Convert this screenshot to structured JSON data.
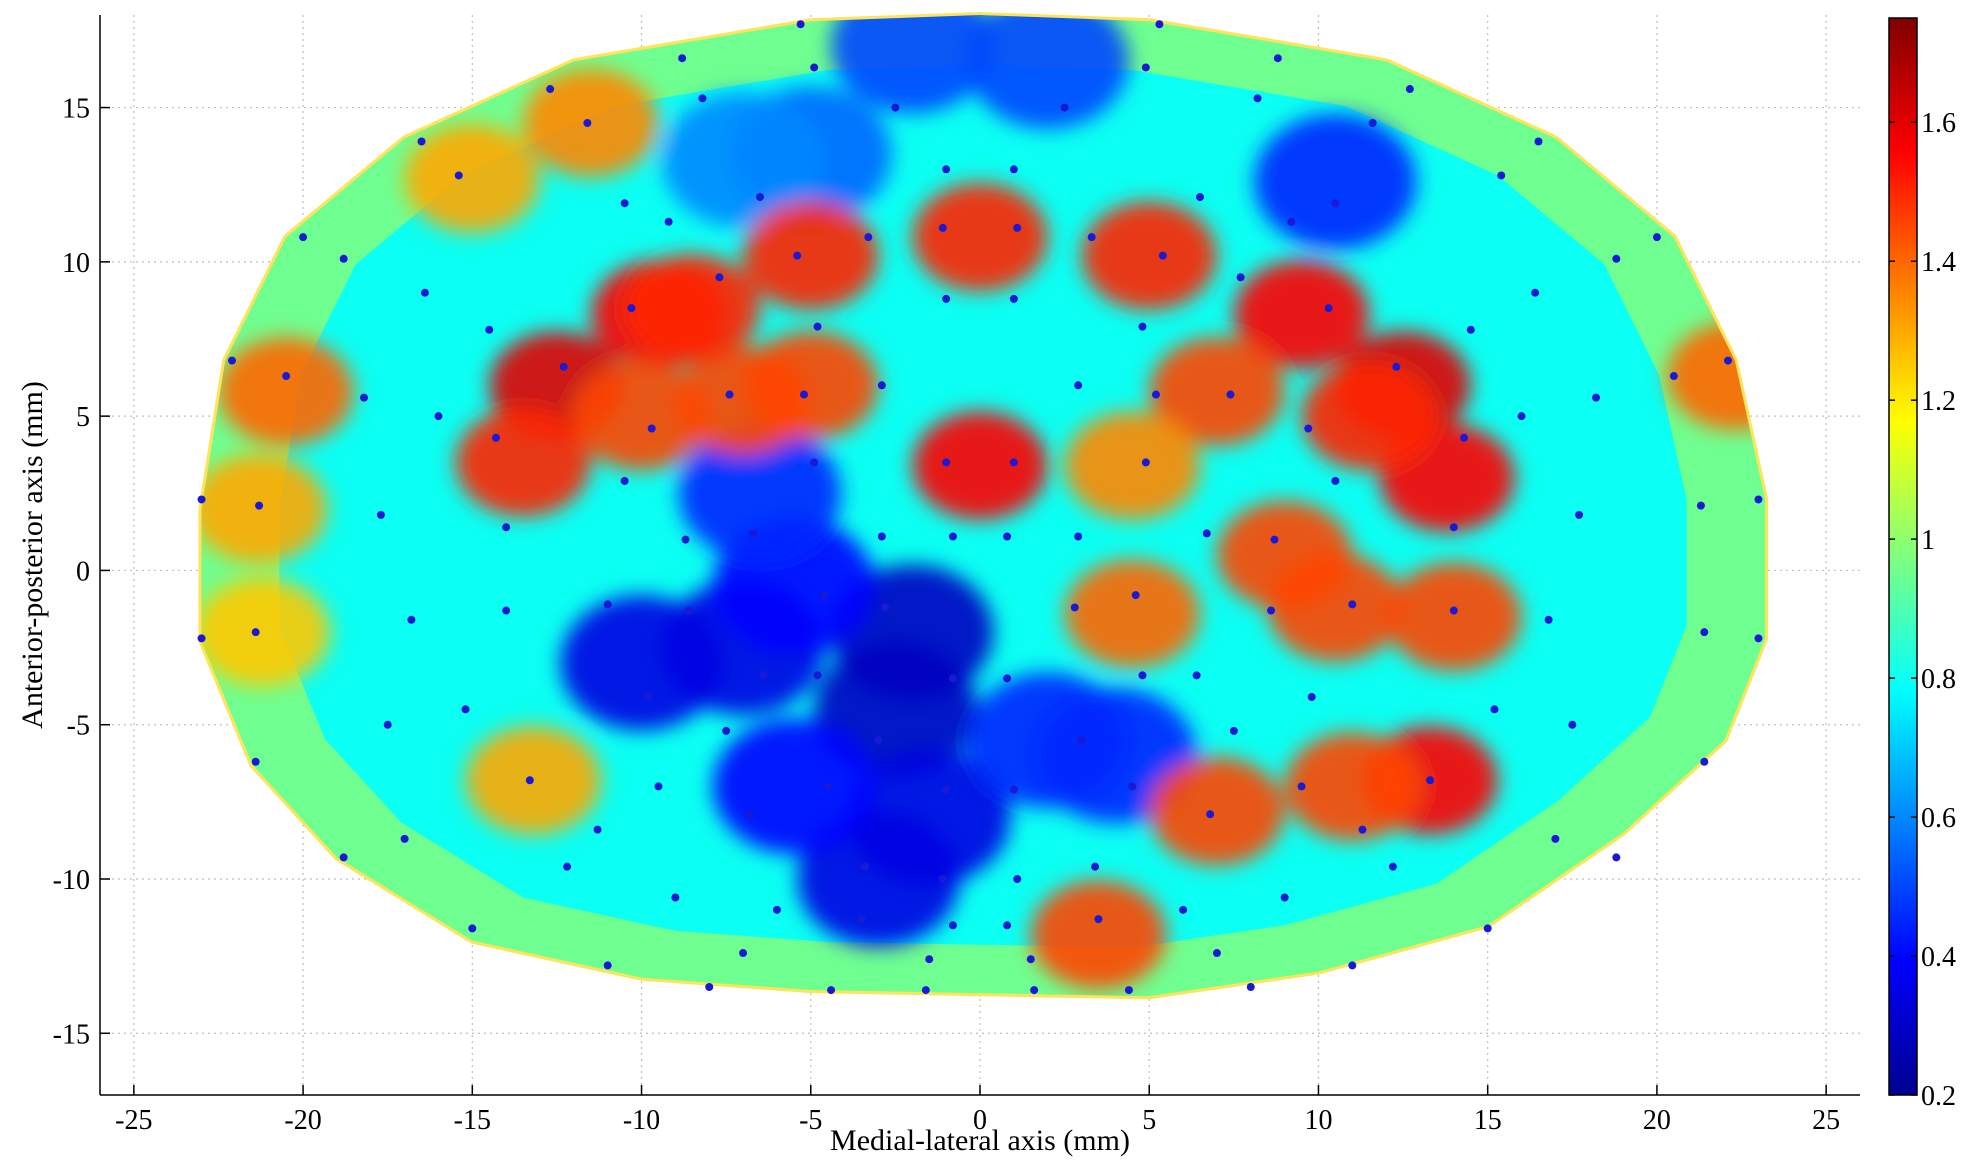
{
  "chart_data": {
    "type": "heatmap",
    "title": "",
    "xlabel": "Medial-lateral axis (mm)",
    "ylabel": "Anterior-posterior axis (mm)",
    "xlim": [
      -26,
      26
    ],
    "ylim": [
      -17,
      18
    ],
    "xticks": [
      -25,
      -20,
      -15,
      -10,
      -5,
      0,
      5,
      10,
      15,
      20,
      25
    ],
    "yticks": [
      -15,
      -10,
      -5,
      0,
      5,
      10,
      15
    ],
    "grid": true,
    "colorbar": {
      "min": 0.2,
      "max": 1.75,
      "ticks": [
        0.2,
        0.4,
        0.6,
        0.8,
        1,
        1.2,
        1.4,
        1.6
      ],
      "colormap": "jet"
    },
    "outline": [
      [
        -23,
        2
      ],
      [
        -22.3,
        6.8
      ],
      [
        -20.5,
        10.8
      ],
      [
        -17,
        14
      ],
      [
        -12,
        16.5
      ],
      [
        -5,
        17.8
      ],
      [
        0,
        18
      ],
      [
        5,
        17.8
      ],
      [
        12,
        16.5
      ],
      [
        17,
        14
      ],
      [
        20.5,
        10.8
      ],
      [
        22.3,
        6.8
      ],
      [
        23.2,
        2.3
      ],
      [
        23.2,
        -2.2
      ],
      [
        22,
        -5.5
      ],
      [
        19,
        -8.5
      ],
      [
        15,
        -11.5
      ],
      [
        10,
        -13
      ],
      [
        5,
        -13.8
      ],
      [
        0,
        -13.7
      ],
      [
        -5,
        -13.6
      ],
      [
        -10,
        -13.2
      ],
      [
        -15,
        -12
      ],
      [
        -19,
        -9.3
      ],
      [
        -21.5,
        -6.3
      ],
      [
        -23,
        -2.3
      ]
    ],
    "hotspots": [
      {
        "x": 0,
        "y": 10.8,
        "value": 1.5
      },
      {
        "x": -5,
        "y": 10.2,
        "value": 1.5
      },
      {
        "x": 5,
        "y": 10.2,
        "value": 1.5
      },
      {
        "x": -9.5,
        "y": 8.3,
        "value": 1.55
      },
      {
        "x": 9.5,
        "y": 8.3,
        "value": 1.55
      },
      {
        "x": -12.5,
        "y": 6,
        "value": 1.6
      },
      {
        "x": 12.5,
        "y": 6,
        "value": 1.6
      },
      {
        "x": -13.5,
        "y": 3.5,
        "value": 1.5
      },
      {
        "x": 13.8,
        "y": 3,
        "value": 1.55
      },
      {
        "x": -7,
        "y": 5.5,
        "value": 1.45
      },
      {
        "x": -5,
        "y": 6,
        "value": 1.45
      },
      {
        "x": 0,
        "y": 3.4,
        "value": 1.55
      },
      {
        "x": 7,
        "y": 5.8,
        "value": 1.45
      },
      {
        "x": -20.5,
        "y": 5.8,
        "value": 1.4
      },
      {
        "x": -21.3,
        "y": 2,
        "value": 1.3
      },
      {
        "x": -21.2,
        "y": -2,
        "value": 1.25
      },
      {
        "x": 9,
        "y": 0.5,
        "value": 1.45
      },
      {
        "x": 10.5,
        "y": -1.2,
        "value": 1.45
      },
      {
        "x": 14,
        "y": -1.5,
        "value": 1.45
      },
      {
        "x": 13.3,
        "y": -6.8,
        "value": 1.55
      },
      {
        "x": 11,
        "y": -7,
        "value": 1.45
      },
      {
        "x": 7,
        "y": -7.8,
        "value": 1.45
      },
      {
        "x": 4.5,
        "y": -1.4,
        "value": 1.4
      },
      {
        "x": 3.5,
        "y": -11.8,
        "value": 1.45
      },
      {
        "x": -13.2,
        "y": -6.8,
        "value": 1.3
      },
      {
        "x": -11.5,
        "y": 14.5,
        "value": 1.35
      },
      {
        "x": -15,
        "y": 12.7,
        "value": 1.3
      },
      {
        "x": 22.3,
        "y": 6.3,
        "value": 1.4
      },
      {
        "x": -8.5,
        "y": 8.5,
        "value": 1.5
      },
      {
        "x": 4.5,
        "y": 3.4,
        "value": 1.35
      },
      {
        "x": -10,
        "y": 5,
        "value": 1.45
      },
      {
        "x": 11.5,
        "y": 5,
        "value": 1.5
      }
    ],
    "coldspots": [
      {
        "x": -2,
        "y": -2,
        "value": 0.3
      },
      {
        "x": -2.5,
        "y": -4.5,
        "value": 0.3
      },
      {
        "x": -10,
        "y": -3,
        "value": 0.35
      },
      {
        "x": -7,
        "y": -2.5,
        "value": 0.35
      },
      {
        "x": -5.5,
        "y": -0.5,
        "value": 0.4
      },
      {
        "x": -1.5,
        "y": -8,
        "value": 0.35
      },
      {
        "x": -3,
        "y": -10,
        "value": 0.35
      },
      {
        "x": -6.5,
        "y": 2.5,
        "value": 0.45
      },
      {
        "x": 2,
        "y": -5.5,
        "value": 0.45
      },
      {
        "x": 4,
        "y": -6,
        "value": 0.45
      },
      {
        "x": -2,
        "y": 17,
        "value": 0.5
      },
      {
        "x": 2,
        "y": 16.5,
        "value": 0.5
      },
      {
        "x": -5,
        "y": 13.5,
        "value": 0.55
      },
      {
        "x": 10.5,
        "y": 12.6,
        "value": 0.45
      },
      {
        "x": -7,
        "y": 13.3,
        "value": 0.6
      },
      {
        "x": -5.5,
        "y": -7,
        "value": 0.4
      }
    ],
    "sample_points": [
      [
        -5.3,
        17.7
      ],
      [
        5.3,
        17.7
      ],
      [
        -8.8,
        16.6
      ],
      [
        8.8,
        16.6
      ],
      [
        -4.9,
        16.3
      ],
      [
        4.9,
        16.3
      ],
      [
        -12.7,
        15.6
      ],
      [
        12.7,
        15.6
      ],
      [
        -8.2,
        15.3
      ],
      [
        8.2,
        15.3
      ],
      [
        -2.5,
        15
      ],
      [
        2.5,
        15
      ],
      [
        -11.6,
        14.5
      ],
      [
        11.6,
        14.5
      ],
      [
        -16.5,
        13.9
      ],
      [
        16.5,
        13.9
      ],
      [
        -15.4,
        12.8
      ],
      [
        15.4,
        12.8
      ],
      [
        -1,
        13
      ],
      [
        1,
        13
      ],
      [
        -6.5,
        12.1
      ],
      [
        6.5,
        12.1
      ],
      [
        -10.5,
        11.9
      ],
      [
        10.5,
        11.9
      ],
      [
        -9.2,
        11.3
      ],
      [
        9.2,
        11.3
      ],
      [
        -1.1,
        11.1
      ],
      [
        1.1,
        11.1
      ],
      [
        -3.3,
        10.8
      ],
      [
        3.3,
        10.8
      ],
      [
        -20,
        10.8
      ],
      [
        20,
        10.8
      ],
      [
        -18.8,
        10.1
      ],
      [
        18.8,
        10.1
      ],
      [
        -5.4,
        10.2
      ],
      [
        5.4,
        10.2
      ],
      [
        -7.7,
        9.5
      ],
      [
        7.7,
        9.5
      ],
      [
        -16.4,
        9
      ],
      [
        16.4,
        9
      ],
      [
        -1,
        8.8
      ],
      [
        1,
        8.8
      ],
      [
        -10.3,
        8.5
      ],
      [
        10.3,
        8.5
      ],
      [
        -14.5,
        7.8
      ],
      [
        14.5,
        7.8
      ],
      [
        -4.8,
        7.9
      ],
      [
        4.8,
        7.9
      ],
      [
        -22.1,
        6.8
      ],
      [
        22.1,
        6.8
      ],
      [
        -12.3,
        6.6
      ],
      [
        12.3,
        6.6
      ],
      [
        -20.5,
        6.3
      ],
      [
        20.5,
        6.3
      ],
      [
        -2.9,
        6
      ],
      [
        2.9,
        6
      ],
      [
        -18.2,
        5.6
      ],
      [
        18.2,
        5.6
      ],
      [
        -7.4,
        5.7
      ],
      [
        7.4,
        5.7
      ],
      [
        -5.2,
        5.7
      ],
      [
        5.2,
        5.7
      ],
      [
        -16,
        5
      ],
      [
        16,
        5
      ],
      [
        -14.3,
        4.3
      ],
      [
        14.3,
        4.3
      ],
      [
        -9.7,
        4.6
      ],
      [
        9.7,
        4.6
      ],
      [
        -1,
        3.5
      ],
      [
        1,
        3.5
      ],
      [
        -4.9,
        3.5
      ],
      [
        4.9,
        3.5
      ],
      [
        -10.5,
        2.9
      ],
      [
        10.5,
        2.9
      ],
      [
        -23,
        2.3
      ],
      [
        23,
        2.3
      ],
      [
        -21.3,
        2.1
      ],
      [
        21.3,
        2.1
      ],
      [
        -17.7,
        1.8
      ],
      [
        17.7,
        1.8
      ],
      [
        -14,
        1.4
      ],
      [
        14,
        1.4
      ],
      [
        -8.7,
        1
      ],
      [
        8.7,
        1
      ],
      [
        -6.7,
        1.2
      ],
      [
        6.7,
        1.2
      ],
      [
        -2.9,
        1.1
      ],
      [
        2.9,
        1.1
      ],
      [
        -0.8,
        1.1
      ],
      [
        0.8,
        1.1
      ],
      [
        -4.6,
        -0.8
      ],
      [
        4.6,
        -0.8
      ],
      [
        -11,
        -1.1
      ],
      [
        11,
        -1.1
      ],
      [
        -8.6,
        -1.3
      ],
      [
        8.6,
        -1.3
      ],
      [
        -2.8,
        -1.2
      ],
      [
        2.8,
        -1.2
      ],
      [
        -21.4,
        -2
      ],
      [
        21.4,
        -2
      ],
      [
        -23,
        -2.2
      ],
      [
        23,
        -2.2
      ],
      [
        -16.8,
        -1.6
      ],
      [
        16.8,
        -1.6
      ],
      [
        -14,
        -1.3
      ],
      [
        14,
        -1.3
      ],
      [
        -6.4,
        -3.4
      ],
      [
        6.4,
        -3.4
      ],
      [
        -0.8,
        -3.5
      ],
      [
        0.8,
        -3.5
      ],
      [
        -4.8,
        -3.4
      ],
      [
        4.8,
        -3.4
      ],
      [
        -9.8,
        -4.1
      ],
      [
        9.8,
        -4.1
      ],
      [
        -15.2,
        -4.5
      ],
      [
        15.2,
        -4.5
      ],
      [
        -17.5,
        -5
      ],
      [
        17.5,
        -5
      ],
      [
        -7.5,
        -5.2
      ],
      [
        7.5,
        -5.2
      ],
      [
        -3,
        -5.5
      ],
      [
        3,
        -5.5
      ],
      [
        -21.4,
        -6.2
      ],
      [
        21.4,
        -6.2
      ],
      [
        -13.3,
        -6.8
      ],
      [
        13.3,
        -6.8
      ],
      [
        -9.5,
        -7
      ],
      [
        9.5,
        -7
      ],
      [
        -4.5,
        -7
      ],
      [
        4.5,
        -7
      ],
      [
        -1,
        -7.1
      ],
      [
        1,
        -7.1
      ],
      [
        -6.8,
        -7.9
      ],
      [
        6.8,
        -7.9
      ],
      [
        -11.3,
        -8.4
      ],
      [
        11.3,
        -8.4
      ],
      [
        -17,
        -8.7
      ],
      [
        17,
        -8.7
      ],
      [
        -18.8,
        -9.3
      ],
      [
        18.8,
        -9.3
      ],
      [
        -12.2,
        -9.6
      ],
      [
        12.2,
        -9.6
      ],
      [
        -3.4,
        -9.6
      ],
      [
        3.4,
        -9.6
      ],
      [
        -1.1,
        -10
      ],
      [
        1.1,
        -10
      ],
      [
        -9,
        -10.6
      ],
      [
        9,
        -10.6
      ],
      [
        -6,
        -11
      ],
      [
        6,
        -11
      ],
      [
        -3.5,
        -11.3
      ],
      [
        3.5,
        -11.3
      ],
      [
        -0.8,
        -11.5
      ],
      [
        0.8,
        -11.5
      ],
      [
        -15,
        -11.6
      ],
      [
        15,
        -11.6
      ],
      [
        -7,
        -12.4
      ],
      [
        7,
        -12.4
      ],
      [
        -1.5,
        -12.6
      ],
      [
        1.5,
        -12.6
      ],
      [
        -11,
        -12.8
      ],
      [
        11,
        -12.8
      ],
      [
        -8,
        -13.5
      ],
      [
        8,
        -13.5
      ],
      [
        -4.4,
        -13.6
      ],
      [
        4.4,
        -13.6
      ],
      [
        -1.6,
        -13.6
      ],
      [
        1.6,
        -13.6
      ]
    ]
  }
}
